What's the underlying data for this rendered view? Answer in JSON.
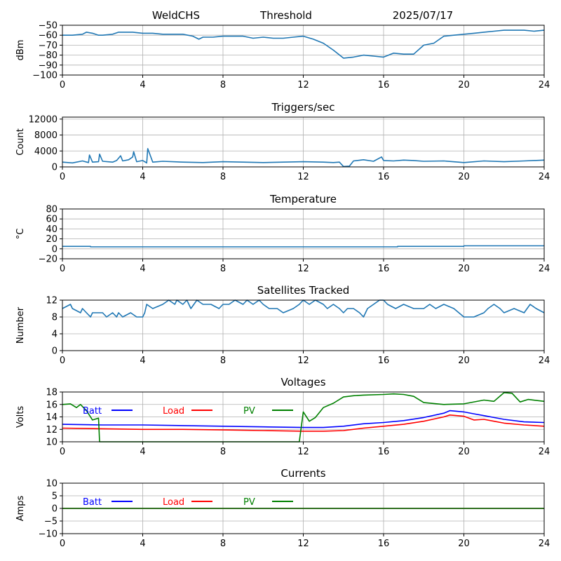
{
  "header": {
    "station": "WeldCHS",
    "mode": "Threshold",
    "date": "2025/07/17"
  },
  "colors": {
    "default": "#1f77b4",
    "batt": "#0000ff",
    "load": "#ff0000",
    "pv": "#008000",
    "grid": "#b0b0b0"
  },
  "legend_labels": [
    "Batt",
    "Load",
    "PV"
  ],
  "chart_data": [
    {
      "type": "line",
      "title": "",
      "ylabel": "dBm",
      "xlim": [
        0,
        24
      ],
      "xticks": [
        0,
        4,
        8,
        12,
        16,
        20,
        24
      ],
      "ylim": [
        -100,
        -50
      ],
      "yticks": [
        -100,
        -90,
        -80,
        -70,
        -60,
        -50
      ],
      "grid": true,
      "series": [
        {
          "color": "#1f77b4",
          "x": [
            0,
            0.5,
            1,
            1.2,
            1.5,
            1.8,
            2,
            2.5,
            2.8,
            3,
            3.5,
            4,
            4.5,
            5,
            5.5,
            6,
            6.5,
            6.8,
            7,
            7.5,
            8,
            8.5,
            9,
            9.5,
            10,
            10.5,
            11,
            11.5,
            12,
            12.5,
            13,
            13.5,
            14,
            14.5,
            15,
            15.5,
            16,
            16.5,
            17,
            17.2,
            17.5,
            18,
            18.5,
            19,
            19.5,
            20,
            20.5,
            21,
            21.5,
            22,
            22.5,
            23,
            23.5,
            24
          ],
          "y": [
            -60,
            -60,
            -59,
            -57,
            -58,
            -60,
            -60,
            -59,
            -57,
            -57,
            -57,
            -58,
            -58,
            -59,
            -59,
            -59,
            -61,
            -64,
            -62,
            -62,
            -61,
            -61,
            -61,
            -63,
            -62,
            -63,
            -63,
            -62,
            -61,
            -64,
            -68,
            -75,
            -83,
            -82,
            -80,
            -81,
            -82,
            -78,
            -79,
            -79,
            -79,
            -70,
            -68,
            -61,
            -60,
            -59,
            -58,
            -57,
            -56,
            -55,
            -55,
            -55,
            -56,
            -55
          ]
        }
      ]
    },
    {
      "type": "line",
      "title": "Triggers/sec",
      "ylabel": "Count",
      "xlim": [
        0,
        24
      ],
      "xticks": [
        0,
        4,
        8,
        12,
        16,
        20,
        24
      ],
      "ylim": [
        0,
        12500
      ],
      "yticks": [
        0,
        4000,
        8000,
        12000
      ],
      "grid": true,
      "series": [
        {
          "color": "#1f77b4",
          "x": [
            0,
            0.5,
            1,
            1.3,
            1.35,
            1.5,
            1.8,
            1.85,
            2,
            2.5,
            2.7,
            2.9,
            3,
            3.3,
            3.5,
            3.55,
            3.7,
            4,
            4.2,
            4.25,
            4.5,
            5,
            6,
            7,
            8,
            9,
            10,
            11,
            12,
            13,
            13.5,
            13.8,
            14,
            14.3,
            14.5,
            15,
            15.5,
            15.9,
            16,
            16.5,
            17,
            17.5,
            18,
            19,
            20,
            21,
            22,
            23,
            24
          ],
          "y": [
            1200,
            1000,
            1500,
            1100,
            3000,
            1200,
            1300,
            3200,
            1400,
            1200,
            1600,
            2800,
            1500,
            1800,
            2500,
            3800,
            1300,
            1600,
            1000,
            4600,
            1200,
            1400,
            1200,
            1100,
            1300,
            1200,
            1100,
            1200,
            1300,
            1200,
            1100,
            1200,
            100,
            200,
            1500,
            1800,
            1400,
            2500,
            1600,
            1500,
            1700,
            1600,
            1400,
            1500,
            1100,
            1500,
            1300,
            1500,
            1700
          ]
        }
      ]
    },
    {
      "type": "line",
      "title": "Temperature",
      "ylabel": "°C",
      "xlim": [
        0,
        24
      ],
      "xticks": [
        0,
        4,
        8,
        12,
        16,
        20,
        24
      ],
      "ylim": [
        -20,
        80
      ],
      "yticks": [
        -20,
        0,
        20,
        40,
        60,
        80
      ],
      "grid": true,
      "series": [
        {
          "color": "#1f77b4",
          "x": [
            0,
            1.4,
            1.4,
            16.7,
            16.7,
            20,
            20,
            24
          ],
          "y": [
            5,
            5,
            4,
            4,
            5,
            5,
            6,
            6
          ]
        }
      ]
    },
    {
      "type": "line",
      "title": "Satellites Tracked",
      "ylabel": "Number",
      "xlim": [
        0,
        24
      ],
      "xticks": [
        0,
        4,
        8,
        12,
        16,
        20,
        24
      ],
      "ylim": [
        0,
        12
      ],
      "yticks": [
        0,
        4,
        8,
        12
      ],
      "grid": true,
      "series": [
        {
          "color": "#1f77b4",
          "x": [
            0,
            0.4,
            0.5,
            0.9,
            1,
            1.2,
            1.4,
            1.5,
            2,
            2.2,
            2.5,
            2.7,
            2.8,
            3,
            3.4,
            3.7,
            4,
            4.1,
            4.2,
            4.5,
            5,
            5.3,
            5.6,
            5.7,
            6,
            6.2,
            6.4,
            6.7,
            7,
            7.4,
            7.8,
            8,
            8.3,
            8.6,
            9,
            9.2,
            9.5,
            9.8,
            10,
            10.3,
            10.7,
            11,
            11.5,
            11.8,
            12,
            12.3,
            12.6,
            13,
            13.2,
            13.5,
            13.8,
            14,
            14.2,
            14.5,
            14.8,
            15,
            15.2,
            15.5,
            15.8,
            16,
            16.2,
            16.6,
            17,
            17.5,
            18,
            18.3,
            18.6,
            19,
            19.5,
            20,
            20.5,
            21,
            21.2,
            21.5,
            21.8,
            22,
            22.5,
            23,
            23.3,
            23.6,
            24
          ],
          "y": [
            10,
            11,
            10,
            9,
            10,
            9,
            8,
            9,
            9,
            8,
            9,
            8,
            9,
            8,
            9,
            8,
            8,
            9,
            11,
            10,
            11,
            12,
            11,
            12,
            11,
            12,
            10,
            12,
            11,
            11,
            10,
            11,
            11,
            12,
            11,
            12,
            11,
            12,
            11,
            10,
            10,
            9,
            10,
            11,
            12,
            11,
            12,
            11,
            10,
            11,
            10,
            9,
            10,
            10,
            9,
            8,
            10,
            11,
            12,
            12,
            11,
            10,
            11,
            10,
            10,
            11,
            10,
            11,
            10,
            8,
            8,
            9,
            10,
            11,
            10,
            9,
            10,
            9,
            11,
            10,
            9
          ]
        }
      ]
    },
    {
      "type": "line",
      "title": "Voltages",
      "ylabel": "Volts",
      "xlim": [
        0,
        24
      ],
      "xticks": [
        0,
        4,
        8,
        12,
        16,
        20,
        24
      ],
      "ylim": [
        10,
        18
      ],
      "yticks": [
        10,
        12,
        14,
        16,
        18
      ],
      "grid": true,
      "legend": [
        "Batt",
        "Load",
        "PV"
      ],
      "series": [
        {
          "name": "Batt",
          "color": "#0000ff",
          "x": [
            0,
            2,
            4,
            6,
            8,
            10,
            12,
            13,
            14,
            15,
            16,
            17,
            18,
            19,
            19.3,
            20,
            20.5,
            21,
            21.5,
            22,
            23,
            24
          ],
          "y": [
            12.8,
            12.7,
            12.7,
            12.6,
            12.5,
            12.4,
            12.3,
            12.3,
            12.5,
            12.9,
            13.1,
            13.4,
            13.9,
            14.6,
            15.0,
            14.8,
            14.5,
            14.2,
            13.9,
            13.6,
            13.2,
            13.1
          ]
        },
        {
          "name": "Load",
          "color": "#ff0000",
          "x": [
            0,
            2,
            4,
            6,
            8,
            10,
            12,
            13,
            14,
            15,
            16,
            17,
            18,
            19,
            19.3,
            20,
            20.5,
            21,
            21.5,
            22,
            23,
            24
          ],
          "y": [
            12.2,
            12.1,
            12.0,
            12.0,
            11.9,
            11.8,
            11.7,
            11.7,
            11.8,
            12.2,
            12.5,
            12.8,
            13.3,
            14.0,
            14.3,
            14.1,
            13.5,
            13.6,
            13.3,
            13.0,
            12.7,
            12.5
          ]
        },
        {
          "name": "PV",
          "color": "#008000",
          "x": [
            0,
            0.4,
            0.7,
            0.9,
            1.2,
            1.5,
            1.8,
            1.85,
            11.8,
            12,
            12.3,
            12.6,
            13,
            13.5,
            14,
            14.5,
            15,
            16,
            16.5,
            17,
            17.5,
            18,
            19,
            20,
            21,
            21.5,
            22,
            22.4,
            22.8,
            23.2,
            24
          ],
          "y": [
            16,
            16.1,
            15.5,
            16,
            15,
            13.5,
            13.8,
            10,
            10,
            14.8,
            13.3,
            13.9,
            15.5,
            16.2,
            17.2,
            17.4,
            17.5,
            17.6,
            17.7,
            17.6,
            17.3,
            16.3,
            16.0,
            16.1,
            16.7,
            16.5,
            17.9,
            17.8,
            16.4,
            16.8,
            16.5
          ]
        }
      ]
    },
    {
      "type": "line",
      "title": "Currents",
      "ylabel": "Amps",
      "xlim": [
        0,
        24
      ],
      "xticks": [
        0,
        4,
        8,
        12,
        16,
        20,
        24
      ],
      "ylim": [
        -10,
        10
      ],
      "yticks": [
        -10,
        -5,
        0,
        5,
        10
      ],
      "grid": true,
      "legend": [
        "Batt",
        "Load",
        "PV"
      ],
      "series": [
        {
          "name": "Batt",
          "color": "#0000ff",
          "x": [
            0,
            24
          ],
          "y": [
            0,
            0
          ]
        },
        {
          "name": "Load",
          "color": "#ff0000",
          "x": [
            0,
            24
          ],
          "y": [
            0,
            0
          ]
        },
        {
          "name": "PV",
          "color": "#008000",
          "x": [
            0,
            24
          ],
          "y": [
            0,
            0
          ]
        }
      ]
    }
  ]
}
